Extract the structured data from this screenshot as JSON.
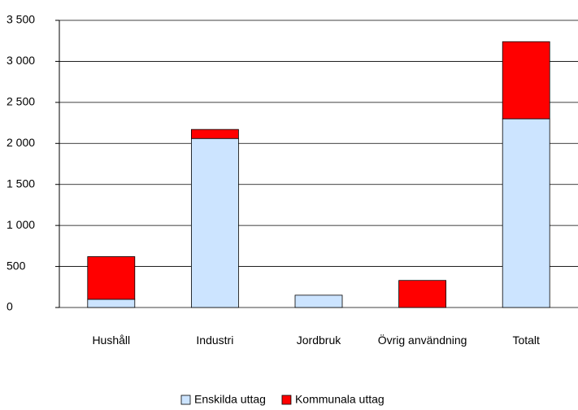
{
  "chart_data": {
    "type": "stacked_bar",
    "categories": [
      "Hushåll",
      "Industri",
      "Jordbruk",
      "Övrig användning",
      "Totalt"
    ],
    "series": [
      {
        "name": "Enskilda uttag",
        "color": "#cce4ff",
        "values": [
          100,
          2060,
          150,
          0,
          2300
        ]
      },
      {
        "name": "Kommunala uttag",
        "color": "#ff0000",
        "values": [
          520,
          110,
          0,
          330,
          940
        ]
      }
    ],
    "ylim": [
      0,
      3500
    ],
    "yticks": [
      0,
      {
        "value": 500,
        "label": "500"
      },
      {
        "value": 1000,
        "label": "1 000"
      },
      {
        "value": 1500,
        "label": "1 500"
      },
      {
        "value": 2000,
        "label": "2 000"
      },
      {
        "value": 2500,
        "label": "2 500"
      },
      {
        "value": 3000,
        "label": "3 000"
      },
      {
        "value": 3500,
        "label": "3 500"
      }
    ],
    "grid": true,
    "legend": "bottom"
  }
}
